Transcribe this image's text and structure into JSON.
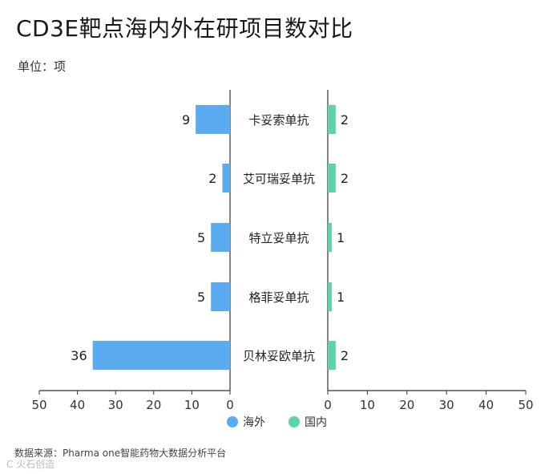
{
  "title": "CD3E靶点海内外在研项目数对比",
  "unit_label": "单位：项",
  "source": "数据来源：Pharma one智能药物大数据分析平台",
  "watermark": "C 火石创造",
  "chart_data": {
    "type": "bar",
    "orientation": "horizontal-butterfly",
    "categories": [
      "卡妥索单抗",
      "艾可瑞妥单抗",
      "特立妥单抗",
      "格菲妥单抗",
      "贝林妥欧单抗"
    ],
    "series": [
      {
        "name": "海外",
        "values": [
          9,
          2,
          5,
          5,
          36
        ],
        "color": "#5aabf0"
      },
      {
        "name": "国内",
        "values": [
          2,
          2,
          1,
          1,
          2
        ],
        "color": "#5fd3a8"
      }
    ],
    "xlim": [
      0,
      50
    ],
    "ticks": [
      0,
      10,
      20,
      30,
      40,
      50
    ],
    "legend_position": "bottom-center"
  }
}
